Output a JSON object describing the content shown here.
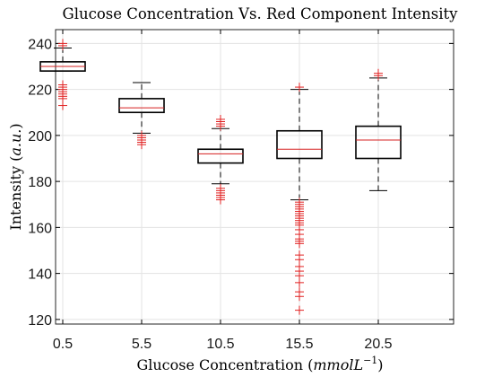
{
  "chart_data": {
    "type": "box",
    "title": "Glucose Concentration Vs. Red Component Intensity",
    "xlabel": {
      "text": "Glucose Concentration (",
      "italic": "mmolL",
      "sup": "−1",
      "end": ")"
    },
    "ylabel": {
      "text": "Intensity (",
      "italic": "a.u.",
      "end": ")"
    },
    "categories": [
      "0.5",
      "5.5",
      "10.5",
      "15.5",
      "20.5"
    ],
    "ylim": [
      118,
      246
    ],
    "yticks": [
      120,
      140,
      160,
      180,
      200,
      220,
      240
    ],
    "grid": true,
    "boxes": [
      {
        "category": "0.5",
        "lower_whisker": 228,
        "q1": 228,
        "median": 230,
        "q3": 232,
        "upper_whisker": 238,
        "outliers": [
          213,
          216,
          217,
          218,
          219,
          220,
          221,
          222,
          239,
          240
        ]
      },
      {
        "category": "5.5",
        "lower_whisker": 201,
        "q1": 210,
        "median": 212,
        "q3": 216,
        "upper_whisker": 223,
        "outliers": [
          196,
          197,
          198,
          199,
          200
        ]
      },
      {
        "category": "10.5",
        "lower_whisker": 179,
        "q1": 188,
        "median": 192,
        "q3": 194,
        "upper_whisker": 203,
        "outliers": [
          172,
          173,
          174,
          175,
          176,
          177,
          204,
          205,
          206,
          207
        ]
      },
      {
        "category": "15.5",
        "lower_whisker": 172,
        "q1": 190,
        "median": 194,
        "q3": 202,
        "upper_whisker": 220,
        "outliers": [
          124,
          130,
          132,
          136,
          139,
          141,
          143,
          146,
          148,
          153,
          154,
          155,
          157,
          159,
          161,
          162,
          163,
          164,
          165,
          166,
          167,
          168,
          169,
          170,
          171,
          221
        ]
      },
      {
        "category": "20.5",
        "lower_whisker": 176,
        "q1": 190,
        "median": 198,
        "q3": 204,
        "upper_whisker": 225,
        "outliers": [
          226,
          227
        ]
      }
    ]
  }
}
